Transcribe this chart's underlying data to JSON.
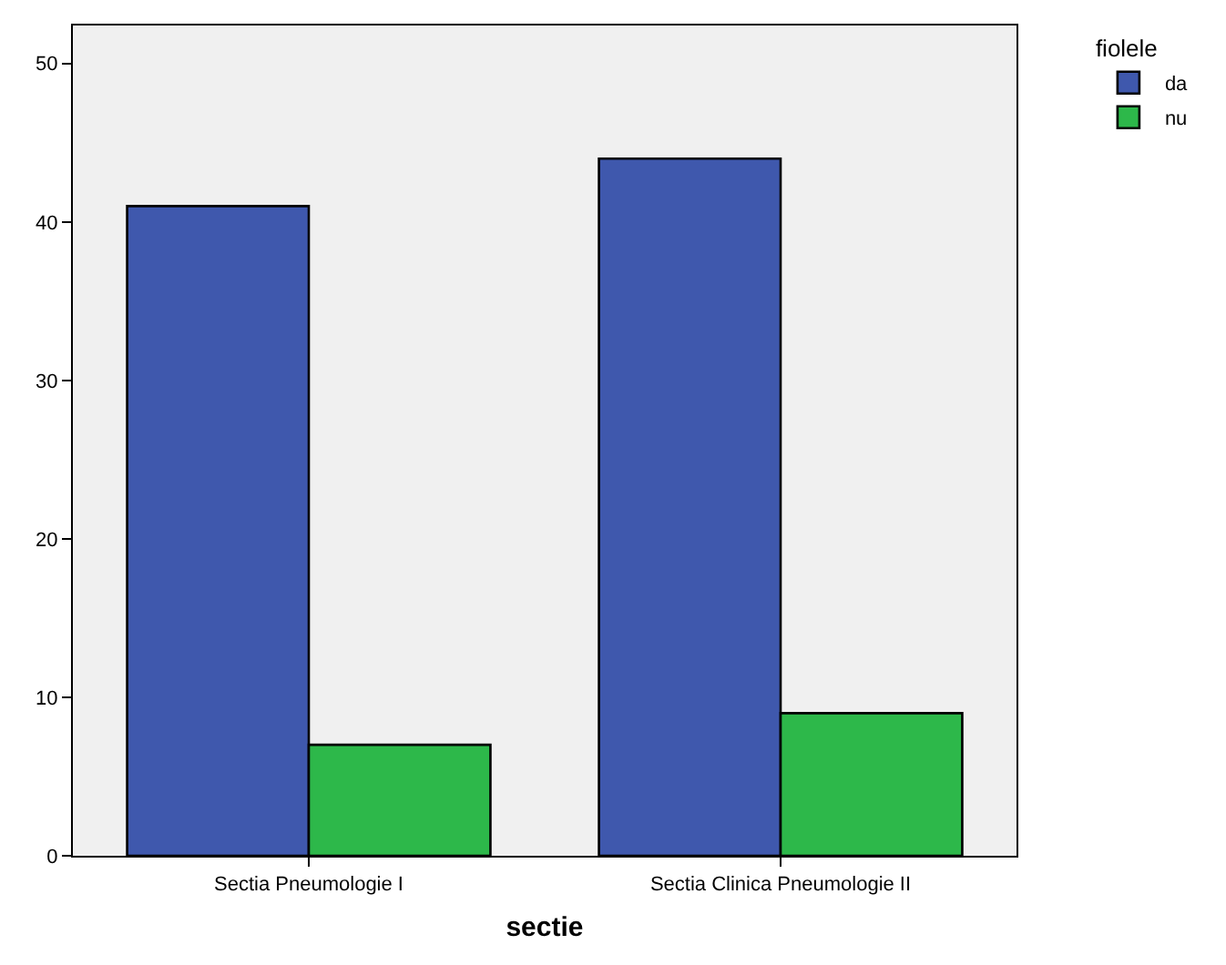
{
  "chart_data": {
    "type": "bar",
    "xlabel": "sectie",
    "legend_title": "fiolele",
    "categories": [
      "Sectia Pneumologie I",
      "Sectia Clinica Pneumologie II"
    ],
    "series": [
      {
        "name": "da",
        "color": "#3f58ad",
        "values": [
          41,
          44
        ]
      },
      {
        "name": "nu",
        "color": "#2db84a",
        "values": [
          7,
          9
        ]
      }
    ],
    "ylim": [
      0,
      52.4
    ],
    "yticks": [
      0,
      10,
      20,
      30,
      40,
      50
    ],
    "grid": false,
    "legend": "top right"
  }
}
